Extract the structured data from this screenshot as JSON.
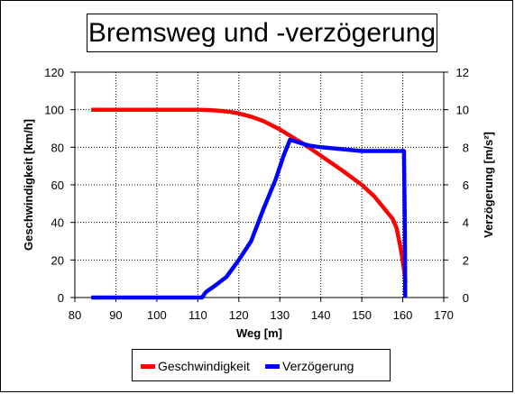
{
  "title": "Bremsweg und -verzögerung",
  "legend": [
    {
      "label": "Geschwindigkeit",
      "color": "#ff0000"
    },
    {
      "label": "Verzögerung",
      "color": "#0000ff"
    }
  ],
  "chart_data": {
    "type": "line",
    "title": "Bremsweg und -verzögerung",
    "xlabel": "Weg [m]",
    "ylabel": "Geschwindigkeit [km/h]",
    "y2label": "Verzögerung [m/s²]",
    "xlim": [
      80,
      170
    ],
    "ylim": [
      0,
      120
    ],
    "y2lim": [
      0,
      12
    ],
    "x_ticks": [
      80,
      90,
      100,
      110,
      120,
      130,
      140,
      150,
      160,
      170
    ],
    "y_ticks": [
      0,
      20,
      40,
      60,
      80,
      100,
      120
    ],
    "y2_ticks": [
      0,
      2,
      4,
      6,
      8,
      10,
      12
    ],
    "grid": true,
    "legend_position": "bottom",
    "series": [
      {
        "name": "Geschwindigkeit",
        "axis": "left",
        "color": "#ff0000",
        "x": [
          84,
          90,
          100,
          110,
          113,
          116,
          118,
          120,
          123,
          126,
          130,
          133,
          136,
          140,
          145,
          150,
          153,
          156,
          157.5,
          158.5,
          159.5,
          160.3,
          160.7
        ],
        "y": [
          100,
          100,
          100,
          100,
          99.8,
          99.3,
          98.8,
          98,
          96.3,
          94,
          89.5,
          85.5,
          81.5,
          75.5,
          68,
          60,
          54,
          46,
          42,
          37,
          26,
          15,
          8
        ]
      },
      {
        "name": "Verzögerung",
        "axis": "right",
        "color": "#0000ff",
        "x": [
          84,
          100,
          111,
          112,
          114,
          117,
          120,
          123,
          126,
          129,
          131,
          132.5,
          134,
          137,
          140,
          145,
          150,
          155,
          160.3,
          160.5,
          160.6
        ],
        "y": [
          0,
          0,
          0,
          0.3,
          0.6,
          1.1,
          2,
          3,
          4.7,
          6.3,
          7.6,
          8.4,
          8.3,
          8.1,
          8,
          7.9,
          7.8,
          7.8,
          7.8,
          4,
          0
        ]
      }
    ]
  }
}
